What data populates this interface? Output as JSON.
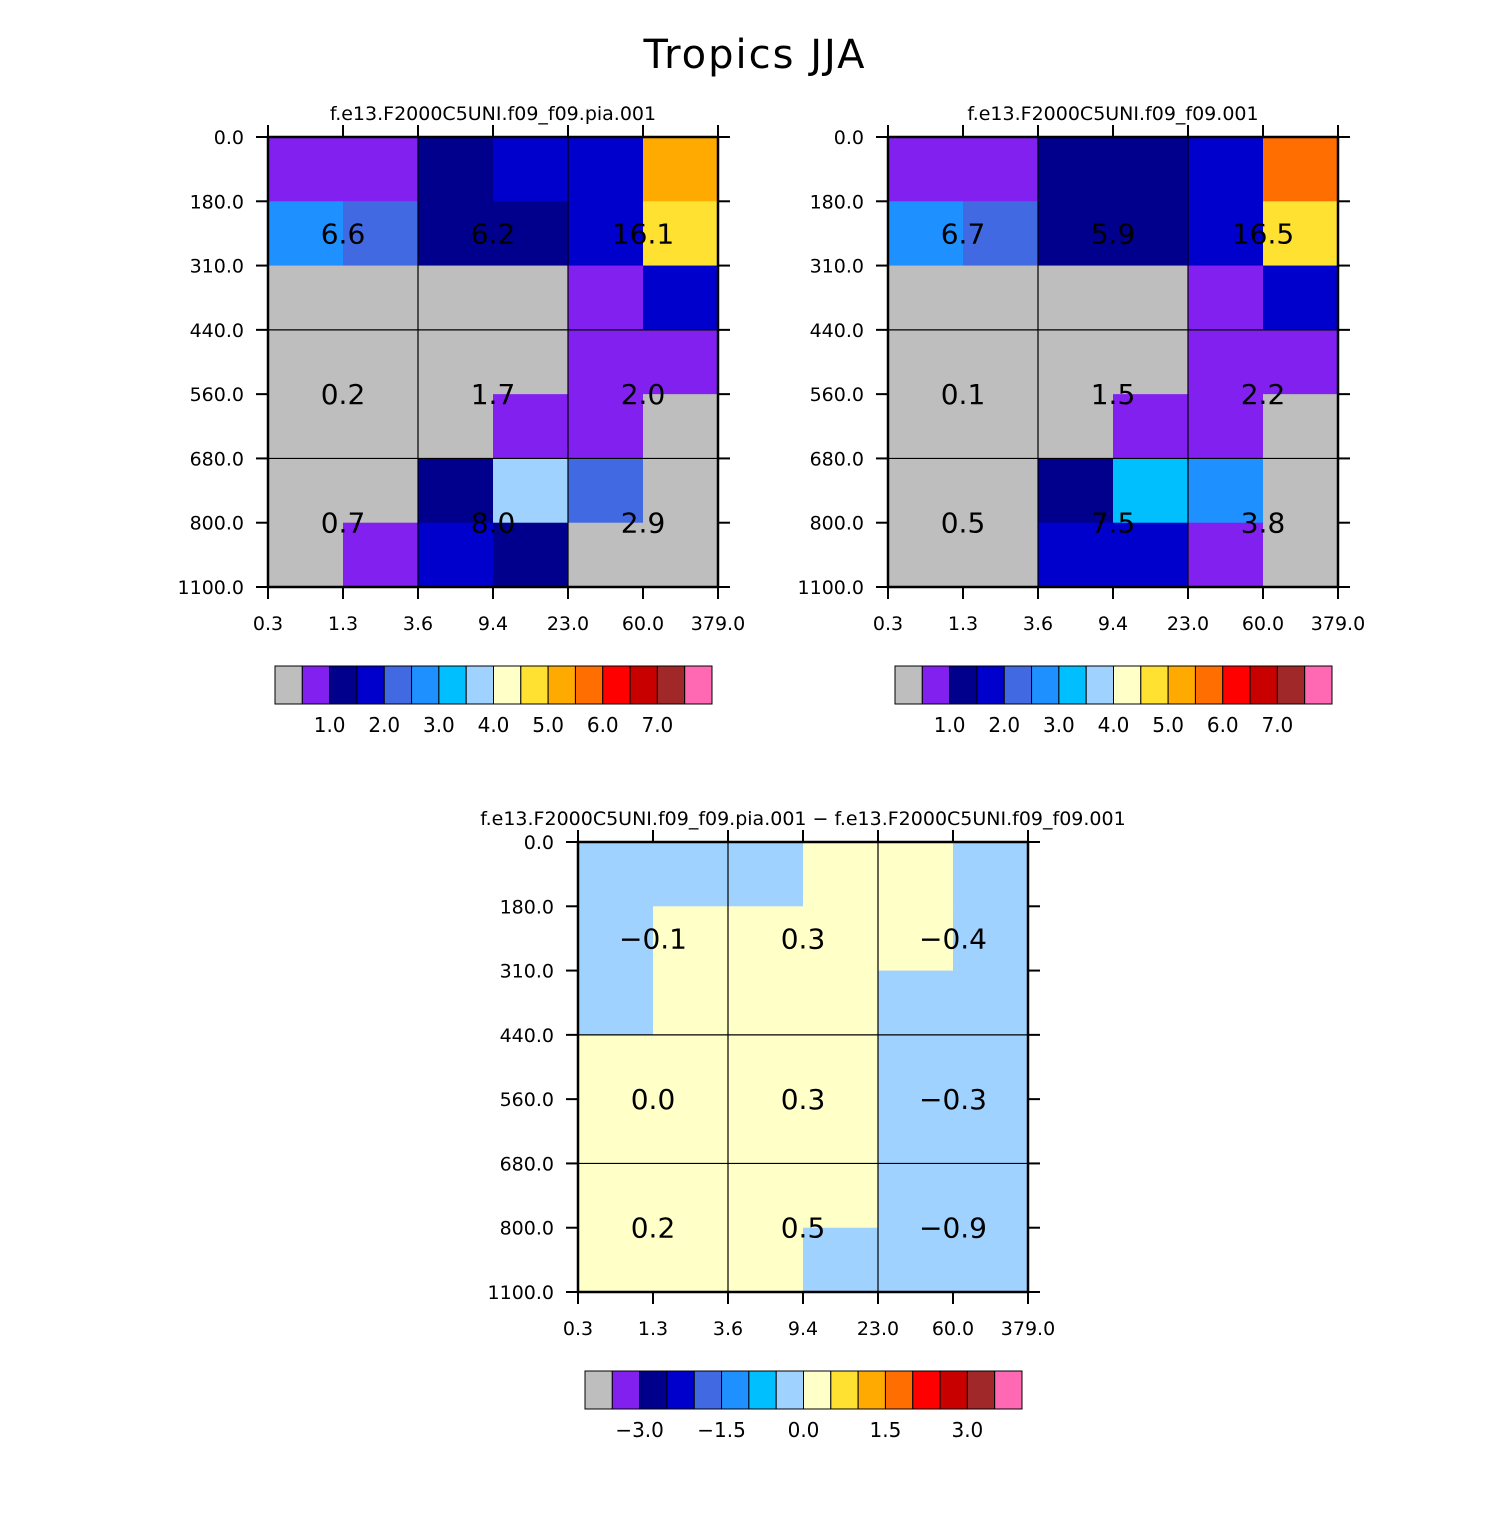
{
  "figure": {
    "title": "Tropics JJA"
  },
  "colors": {
    "missing": "#bebebe",
    "palette": [
      "#bebebe",
      "#8220f0",
      "#00008c",
      "#0000cd",
      "#4169e1",
      "#1e90ff",
      "#00bfff",
      "#a0d2ff",
      "#ffffc8",
      "#ffe132",
      "#ffaa00",
      "#ff6e00",
      "#ff0000",
      "#c80000",
      "#a02828",
      "#ff69b4"
    ]
  },
  "chart_data": [
    {
      "id": "pia",
      "type": "heatmap",
      "title": "f.e13.F2000C5UNI.f09_f09.pia.001",
      "x_ticks": [
        "0.3",
        "1.3",
        "3.6",
        "9.4",
        "23.0",
        "60.0",
        "379.0"
      ],
      "y_ticks": [
        "0.0",
        "180.0",
        "310.0",
        "440.0",
        "560.0",
        "680.0",
        "800.0",
        "1100.0"
      ],
      "cell_colors": [
        [
          1,
          1,
          2,
          3,
          3,
          10
        ],
        [
          5,
          4,
          2,
          2,
          3,
          9
        ],
        [
          0,
          0,
          0,
          0,
          1,
          3
        ],
        [
          0,
          0,
          0,
          0,
          1,
          1
        ],
        [
          0,
          0,
          0,
          1,
          1,
          0
        ],
        [
          0,
          0,
          2,
          7,
          4,
          0
        ],
        [
          0,
          1,
          3,
          2,
          0,
          0
        ]
      ],
      "group_values": [
        [
          "6.6",
          "6.2",
          "16.1"
        ],
        [
          "0.2",
          "1.7",
          "2.0"
        ],
        [
          "0.7",
          "8.0",
          "2.9"
        ]
      ],
      "colorbar": {
        "ticks": [
          "1.0",
          "2.0",
          "3.0",
          "4.0",
          "5.0",
          "6.0",
          "7.0"
        ]
      }
    },
    {
      "id": "ctl",
      "type": "heatmap",
      "title": "f.e13.F2000C5UNI.f09_f09.001",
      "x_ticks": [
        "0.3",
        "1.3",
        "3.6",
        "9.4",
        "23.0",
        "60.0",
        "379.0"
      ],
      "y_ticks": [
        "0.0",
        "180.0",
        "310.0",
        "440.0",
        "560.0",
        "680.0",
        "800.0",
        "1100.0"
      ],
      "cell_colors": [
        [
          1,
          1,
          2,
          2,
          3,
          11
        ],
        [
          5,
          4,
          2,
          2,
          3,
          9
        ],
        [
          0,
          0,
          0,
          0,
          1,
          3
        ],
        [
          0,
          0,
          0,
          0,
          1,
          1
        ],
        [
          0,
          0,
          0,
          1,
          1,
          0
        ],
        [
          0,
          0,
          2,
          6,
          5,
          0
        ],
        [
          0,
          0,
          3,
          3,
          1,
          0
        ]
      ],
      "group_values": [
        [
          "6.7",
          "5.9",
          "16.5"
        ],
        [
          "0.1",
          "1.5",
          "2.2"
        ],
        [
          "0.5",
          "7.5",
          "3.8"
        ]
      ],
      "colorbar": {
        "ticks": [
          "1.0",
          "2.0",
          "3.0",
          "4.0",
          "5.0",
          "6.0",
          "7.0"
        ]
      }
    },
    {
      "id": "diff",
      "type": "heatmap",
      "title": "f.e13.F2000C5UNI.f09_f09.pia.001 − f.e13.F2000C5UNI.f09_f09.001",
      "x_ticks": [
        "0.3",
        "1.3",
        "3.6",
        "9.4",
        "23.0",
        "60.0",
        "379.0"
      ],
      "y_ticks": [
        "0.0",
        "180.0",
        "310.0",
        "440.0",
        "560.0",
        "680.0",
        "800.0",
        "1100.0"
      ],
      "cell_colors": [
        [
          7,
          7,
          7,
          8,
          8,
          7
        ],
        [
          7,
          8,
          8,
          8,
          8,
          7
        ],
        [
          7,
          8,
          8,
          8,
          7,
          7
        ],
        [
          8,
          8,
          8,
          8,
          7,
          7
        ],
        [
          8,
          8,
          8,
          8,
          7,
          7
        ],
        [
          8,
          8,
          8,
          8,
          7,
          7
        ],
        [
          8,
          8,
          8,
          7,
          7,
          7
        ]
      ],
      "group_values": [
        [
          "−0.1",
          "0.3",
          "−0.4"
        ],
        [
          "0.0",
          "0.3",
          "−0.3"
        ],
        [
          "0.2",
          "0.5",
          "−0.9"
        ]
      ],
      "colorbar": {
        "ticks": [
          "−3.0",
          "−1.5",
          "0.0",
          "1.5",
          "3.0"
        ]
      }
    }
  ]
}
